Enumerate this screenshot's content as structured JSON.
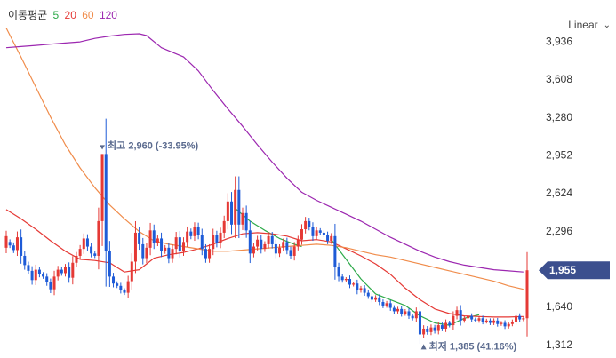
{
  "legend": {
    "title": "이동평균",
    "items": [
      {
        "label": "5",
        "color": "#2eaa4a"
      },
      {
        "label": "20",
        "color": "#e53935"
      },
      {
        "label": "60",
        "color": "#f08c4b"
      },
      {
        "label": "120",
        "color": "#9c27b0"
      }
    ]
  },
  "scale_selector": {
    "label": "Linear"
  },
  "chart_data": {
    "type": "candlestick",
    "yticks": [
      "3,936",
      "3,608",
      "3,280",
      "2,952",
      "2,624",
      "2,296",
      "1,640",
      "1,312"
    ],
    "ylim": [
      1250,
      4200
    ],
    "current_price": {
      "label": "1,955",
      "value": 1955
    },
    "annotations": {
      "high": {
        "text": "최고 2,960 (-33.95%)",
        "value": 2960,
        "index": 26
      },
      "low": {
        "text": "최저 1,385 (41.16%)",
        "value": 1385,
        "index": 113
      }
    },
    "moving_averages": [
      {
        "period": 5,
        "color": "#2eaa4a",
        "points": [
          [
            62,
            2490
          ],
          [
            66,
            2380
          ],
          [
            70,
            2300
          ],
          [
            74,
            2230
          ],
          [
            78,
            2180
          ],
          [
            80,
            2160
          ]
        ]
      },
      {
        "period": 5,
        "color": "#2eaa4a",
        "points": [
          [
            88,
            2220
          ],
          [
            92,
            2050
          ],
          [
            96,
            1880
          ],
          [
            100,
            1750
          ],
          [
            104,
            1700
          ],
          [
            108,
            1650
          ],
          [
            112,
            1560
          ],
          [
            116,
            1500
          ],
          [
            120,
            1480
          ],
          [
            124,
            1540
          ],
          [
            128,
            1570
          ]
        ]
      },
      {
        "period": 20,
        "color": "#e53935",
        "points": [
          [
            0,
            2480
          ],
          [
            4,
            2400
          ],
          [
            8,
            2310
          ],
          [
            12,
            2210
          ],
          [
            16,
            2120
          ],
          [
            20,
            2050
          ],
          [
            24,
            2040
          ],
          [
            28,
            2020
          ],
          [
            32,
            1940
          ],
          [
            36,
            1960
          ],
          [
            40,
            2060
          ],
          [
            44,
            2090
          ],
          [
            48,
            2110
          ],
          [
            52,
            2140
          ],
          [
            56,
            2180
          ],
          [
            60,
            2230
          ],
          [
            64,
            2270
          ],
          [
            68,
            2280
          ],
          [
            72,
            2270
          ],
          [
            76,
            2250
          ],
          [
            80,
            2210
          ],
          [
            84,
            2220
          ],
          [
            88,
            2200
          ],
          [
            92,
            2140
          ],
          [
            96,
            2080
          ],
          [
            100,
            2010
          ],
          [
            104,
            1920
          ],
          [
            108,
            1800
          ],
          [
            112,
            1700
          ],
          [
            116,
            1620
          ],
          [
            120,
            1580
          ],
          [
            124,
            1560
          ],
          [
            128,
            1555
          ],
          [
            132,
            1550
          ],
          [
            136,
            1550
          ],
          [
            140,
            1555
          ]
        ]
      },
      {
        "period": 60,
        "color": "#f08c4b",
        "points": [
          [
            0,
            4050
          ],
          [
            4,
            3800
          ],
          [
            8,
            3540
          ],
          [
            12,
            3280
          ],
          [
            16,
            3040
          ],
          [
            20,
            2840
          ],
          [
            24,
            2670
          ],
          [
            28,
            2520
          ],
          [
            32,
            2400
          ],
          [
            36,
            2290
          ],
          [
            40,
            2210
          ],
          [
            44,
            2180
          ],
          [
            48,
            2160
          ],
          [
            52,
            2140
          ],
          [
            56,
            2120
          ],
          [
            60,
            2120
          ],
          [
            64,
            2130
          ],
          [
            68,
            2140
          ],
          [
            72,
            2150
          ],
          [
            76,
            2160
          ],
          [
            80,
            2170
          ],
          [
            84,
            2180
          ],
          [
            88,
            2170
          ],
          [
            92,
            2150
          ],
          [
            96,
            2120
          ],
          [
            100,
            2090
          ],
          [
            104,
            2070
          ],
          [
            108,
            2040
          ],
          [
            112,
            2010
          ],
          [
            116,
            1980
          ],
          [
            120,
            1950
          ],
          [
            124,
            1920
          ],
          [
            128,
            1890
          ],
          [
            132,
            1860
          ],
          [
            136,
            1820
          ],
          [
            140,
            1790
          ]
        ]
      },
      {
        "period": 120,
        "color": "#9c27b0",
        "points": [
          [
            0,
            3880
          ],
          [
            4,
            3890
          ],
          [
            8,
            3900
          ],
          [
            12,
            3910
          ],
          [
            16,
            3920
          ],
          [
            20,
            3930
          ],
          [
            24,
            3960
          ],
          [
            28,
            3980
          ],
          [
            32,
            3995
          ],
          [
            36,
            4000
          ],
          [
            38,
            3985
          ],
          [
            42,
            3880
          ],
          [
            48,
            3800
          ],
          [
            52,
            3680
          ],
          [
            56,
            3510
          ],
          [
            60,
            3350
          ],
          [
            64,
            3200
          ],
          [
            68,
            3040
          ],
          [
            72,
            2890
          ],
          [
            76,
            2750
          ],
          [
            80,
            2630
          ],
          [
            84,
            2560
          ],
          [
            88,
            2500
          ],
          [
            92,
            2440
          ],
          [
            96,
            2380
          ],
          [
            100,
            2310
          ],
          [
            104,
            2240
          ],
          [
            108,
            2180
          ],
          [
            112,
            2120
          ],
          [
            116,
            2070
          ],
          [
            120,
            2030
          ],
          [
            124,
            2000
          ],
          [
            128,
            1980
          ],
          [
            132,
            1960
          ],
          [
            136,
            1950
          ],
          [
            140,
            1940
          ]
        ]
      }
    ],
    "candles": [
      [
        2150,
        2250
      ],
      [
        2200,
        2170
      ],
      [
        2170,
        2130
      ],
      [
        2130,
        2240
      ],
      [
        2240,
        2080
      ],
      [
        2080,
        2000
      ],
      [
        2000,
        1950
      ],
      [
        1950,
        1870
      ],
      [
        1870,
        1960
      ],
      [
        1960,
        1920
      ],
      [
        1920,
        1900
      ],
      [
        1900,
        1850
      ],
      [
        1850,
        1790
      ],
      [
        1790,
        1900
      ],
      [
        1900,
        1960
      ],
      [
        1960,
        1930
      ],
      [
        1930,
        1980
      ],
      [
        1980,
        1890
      ],
      [
        1890,
        2020
      ],
      [
        2020,
        2080
      ],
      [
        2080,
        2140
      ],
      [
        2140,
        2230
      ],
      [
        2230,
        2160
      ],
      [
        2160,
        2100
      ],
      [
        2100,
        2080
      ],
      [
        2080,
        2380
      ],
      [
        2380,
        2960
      ],
      [
        2960,
        2120
      ],
      [
        2120,
        1900
      ],
      [
        1900,
        1840
      ],
      [
        1840,
        1820
      ],
      [
        1820,
        1780
      ],
      [
        1780,
        1760
      ],
      [
        1760,
        1860
      ],
      [
        1860,
        2030
      ],
      [
        2030,
        2280
      ],
      [
        2280,
        2180
      ],
      [
        2180,
        2060
      ],
      [
        2060,
        2150
      ],
      [
        2150,
        2300
      ],
      [
        2300,
        2190
      ],
      [
        2190,
        2230
      ],
      [
        2230,
        2120
      ],
      [
        2120,
        2150
      ],
      [
        2150,
        2060
      ],
      [
        2060,
        2140
      ],
      [
        2140,
        2240
      ],
      [
        2240,
        2120
      ],
      [
        2120,
        2200
      ],
      [
        2200,
        2290
      ],
      [
        2290,
        2250
      ],
      [
        2250,
        2330
      ],
      [
        2330,
        2260
      ],
      [
        2260,
        2140
      ],
      [
        2140,
        2060
      ],
      [
        2060,
        2140
      ],
      [
        2140,
        2260
      ],
      [
        2260,
        2190
      ],
      [
        2190,
        2280
      ],
      [
        2280,
        2380
      ],
      [
        2380,
        2550
      ],
      [
        2550,
        2350
      ],
      [
        2350,
        2650
      ],
      [
        2650,
        2350
      ],
      [
        2350,
        2450
      ],
      [
        2450,
        2300
      ],
      [
        2300,
        2100
      ],
      [
        2100,
        2160
      ],
      [
        2160,
        2220
      ],
      [
        2220,
        2140
      ],
      [
        2140,
        2180
      ],
      [
        2180,
        2250
      ],
      [
        2250,
        2180
      ],
      [
        2180,
        2100
      ],
      [
        2100,
        2150
      ],
      [
        2150,
        2200
      ],
      [
        2200,
        2130
      ],
      [
        2130,
        2080
      ],
      [
        2080,
        2160
      ],
      [
        2160,
        2220
      ],
      [
        2220,
        2310
      ],
      [
        2310,
        2380
      ],
      [
        2380,
        2330
      ],
      [
        2330,
        2250
      ],
      [
        2250,
        2300
      ],
      [
        2300,
        2280
      ],
      [
        2280,
        2260
      ],
      [
        2260,
        2210
      ],
      [
        2210,
        2250
      ],
      [
        2250,
        1980
      ],
      [
        1980,
        1900
      ],
      [
        1900,
        1870
      ],
      [
        1870,
        1880
      ],
      [
        1880,
        1830
      ],
      [
        1830,
        1840
      ],
      [
        1840,
        1780
      ],
      [
        1780,
        1800
      ],
      [
        1800,
        1760
      ],
      [
        1760,
        1730
      ],
      [
        1730,
        1700
      ],
      [
        1700,
        1720
      ],
      [
        1720,
        1680
      ],
      [
        1680,
        1650
      ],
      [
        1650,
        1670
      ],
      [
        1670,
        1630
      ],
      [
        1630,
        1600
      ],
      [
        1600,
        1620
      ],
      [
        1620,
        1580
      ],
      [
        1580,
        1600
      ],
      [
        1600,
        1560
      ],
      [
        1560,
        1540
      ],
      [
        1540,
        1600
      ],
      [
        1600,
        1400
      ],
      [
        1400,
        1450
      ],
      [
        1450,
        1420
      ],
      [
        1420,
        1460
      ],
      [
        1460,
        1430
      ],
      [
        1430,
        1480
      ],
      [
        1480,
        1450
      ],
      [
        1450,
        1500
      ],
      [
        1500,
        1480
      ],
      [
        1480,
        1560
      ],
      [
        1560,
        1610
      ],
      [
        1610,
        1520
      ],
      [
        1520,
        1540
      ],
      [
        1540,
        1560
      ],
      [
        1560,
        1530
      ],
      [
        1530,
        1520
      ],
      [
        1520,
        1540
      ],
      [
        1540,
        1510
      ],
      [
        1510,
        1520
      ],
      [
        1520,
        1500
      ],
      [
        1500,
        1520
      ],
      [
        1520,
        1490
      ],
      [
        1490,
        1500
      ],
      [
        1500,
        1470
      ],
      [
        1470,
        1490
      ],
      [
        1490,
        1510
      ],
      [
        1510,
        1560
      ],
      [
        1560,
        1530
      ],
      [
        1530,
        1540
      ],
      [
        1540,
        1955
      ]
    ]
  }
}
